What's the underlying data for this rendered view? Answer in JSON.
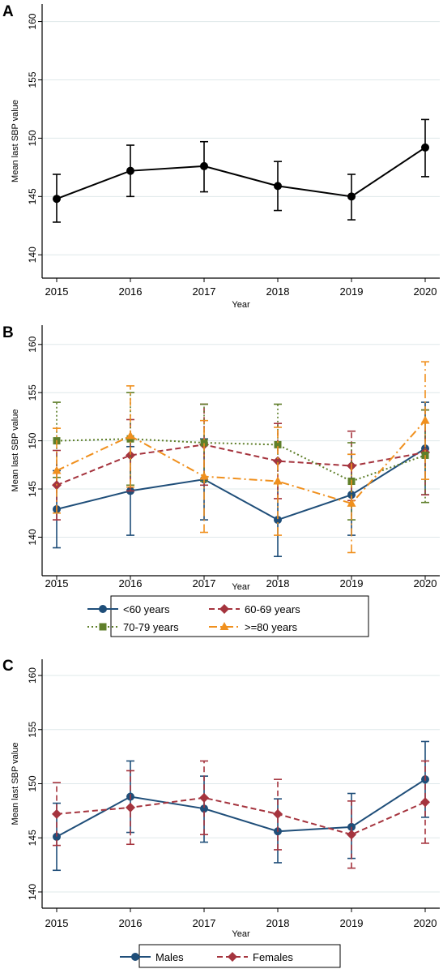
{
  "chart_data": [
    {
      "panel_label": "A",
      "type": "line",
      "xlabel": "Year",
      "ylabel": "Mean last SBP value",
      "x": [
        2015,
        2016,
        2017,
        2018,
        2019,
        2020
      ],
      "xticks": [
        "2015",
        "2016",
        "2017",
        "2018",
        "2019",
        "2020"
      ],
      "yticks": [
        "140",
        "145",
        "150",
        "155",
        "160"
      ],
      "ylim": [
        138,
        161.5
      ],
      "grid": true,
      "legend": null,
      "series": [
        {
          "color": "#000000",
          "dash": "solid",
          "marker": "circle",
          "values": [
            144.8,
            147.2,
            147.6,
            145.9,
            145.0,
            149.2
          ],
          "lower": [
            142.8,
            145.0,
            145.4,
            143.8,
            143.0,
            146.7
          ],
          "upper": [
            146.9,
            149.4,
            149.7,
            148.0,
            146.9,
            151.6
          ]
        }
      ]
    },
    {
      "panel_label": "B",
      "type": "line",
      "xlabel": "Year",
      "ylabel": "Mean last SBP value",
      "x": [
        2015,
        2016,
        2017,
        2018,
        2019,
        2020
      ],
      "xticks": [
        "2015",
        "2016",
        "2017",
        "2018",
        "2019",
        "2020"
      ],
      "yticks": [
        "140",
        "145",
        "150",
        "155",
        "160"
      ],
      "ylim": [
        136,
        162
      ],
      "grid": true,
      "legend": "bottom",
      "series": [
        {
          "name": "<60 years",
          "color": "#1f4e79",
          "dash": "solid",
          "marker": "circle",
          "values": [
            142.9,
            144.8,
            146.0,
            141.8,
            144.4,
            149.2
          ],
          "lower": [
            138.9,
            140.2,
            141.8,
            138.0,
            140.2,
            144.4
          ],
          "upper": [
            146.9,
            149.4,
            150.2,
            145.6,
            148.6,
            154.0
          ]
        },
        {
          "name": "60-69 years",
          "color": "#a5343e",
          "dash": "dashed",
          "marker": "diamond",
          "values": [
            145.4,
            148.5,
            149.6,
            147.9,
            147.4,
            148.8
          ],
          "lower": [
            141.8,
            144.8,
            145.4,
            144.0,
            143.8,
            144.4
          ],
          "upper": [
            149.0,
            152.2,
            153.8,
            151.8,
            151.0,
            153.2
          ]
        },
        {
          "name": "70-79 years",
          "color": "#5f7f2a",
          "dash": "dotted",
          "marker": "square",
          "values": [
            150.0,
            150.2,
            149.8,
            149.6,
            145.8,
            148.5
          ],
          "lower": [
            146.2,
            145.4,
            145.8,
            145.6,
            141.8,
            143.6
          ],
          "upper": [
            154.0,
            155.0,
            153.8,
            153.8,
            149.8,
            153.2
          ]
        },
        {
          "name": ">=80 years",
          "color": "#f0901e",
          "dash": "dashdot",
          "marker": "triangle",
          "values": [
            146.9,
            150.5,
            146.3,
            145.8,
            143.5,
            152.1
          ],
          "lower": [
            142.5,
            145.2,
            140.5,
            140.2,
            138.4,
            146.0
          ],
          "upper": [
            151.3,
            155.7,
            152.1,
            151.4,
            148.6,
            158.2
          ]
        }
      ]
    },
    {
      "panel_label": "C",
      "type": "line",
      "xlabel": "Year",
      "ylabel": "Mean last SBP value",
      "x": [
        2015,
        2016,
        2017,
        2018,
        2019,
        2020
      ],
      "xticks": [
        "2015",
        "2016",
        "2017",
        "2018",
        "2019",
        "2020"
      ],
      "yticks": [
        "140",
        "145",
        "150",
        "155",
        "160"
      ],
      "ylim": [
        138.5,
        161.5
      ],
      "grid": true,
      "legend": "bottom",
      "series": [
        {
          "name": "Males",
          "color": "#1f4e79",
          "dash": "solid",
          "marker": "circle",
          "values": [
            145.1,
            148.8,
            147.7,
            145.6,
            146.0,
            150.4
          ],
          "lower": [
            142.0,
            145.5,
            144.6,
            142.7,
            143.1,
            146.9
          ],
          "upper": [
            148.2,
            152.1,
            150.7,
            148.6,
            149.1,
            153.9
          ]
        },
        {
          "name": "Females",
          "color": "#a5343e",
          "dash": "dashed",
          "marker": "diamond",
          "values": [
            147.2,
            147.8,
            148.7,
            147.2,
            145.3,
            148.3
          ],
          "lower": [
            144.3,
            144.4,
            145.3,
            143.9,
            142.2,
            144.5
          ],
          "upper": [
            150.1,
            151.2,
            152.1,
            150.4,
            148.4,
            152.1
          ]
        }
      ]
    }
  ]
}
